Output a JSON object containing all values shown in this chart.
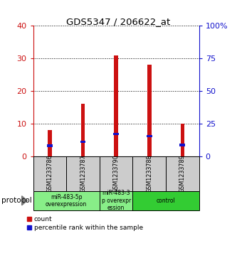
{
  "title": "GDS5347 / 206622_at",
  "samples": [
    "GSM1233786",
    "GSM1233787",
    "GSM1233790",
    "GSM1233788",
    "GSM1233789"
  ],
  "count_values": [
    8,
    16,
    31,
    28,
    10
  ],
  "percentile_values": [
    8,
    11,
    17,
    15.5,
    8.5
  ],
  "left_ylim": [
    0,
    40
  ],
  "right_ylim": [
    0,
    100
  ],
  "left_yticks": [
    0,
    10,
    20,
    30,
    40
  ],
  "right_yticks": [
    0,
    25,
    50,
    75,
    100
  ],
  "right_yticklabels": [
    "0",
    "25",
    "50",
    "75",
    "100%"
  ],
  "bar_color": "#cc1111",
  "percentile_color": "#1111cc",
  "bar_width": 0.12,
  "groups": [
    {
      "label": "miR-483-5p\noverexpression",
      "cols": [
        0,
        1
      ],
      "color": "#88ee88"
    },
    {
      "label": "miR-483-3\np overexpr\nession",
      "cols": [
        2
      ],
      "color": "#88ee88"
    },
    {
      "label": "control",
      "cols": [
        3,
        4
      ],
      "color": "#33cc33"
    }
  ],
  "protocol_label": "protocol",
  "legend_count_label": "count",
  "legend_percentile_label": "percentile rank within the sample",
  "sample_bg": "#cccccc",
  "plot_bg": "#ffffff",
  "figure_bg": "#ffffff"
}
